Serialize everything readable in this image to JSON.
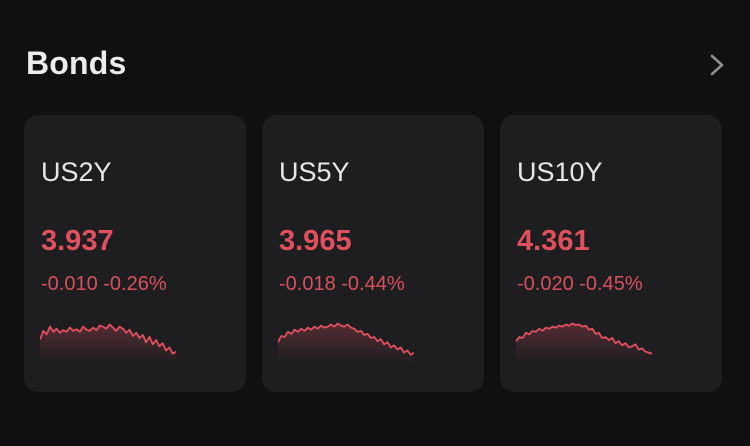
{
  "header": {
    "title": "Bonds",
    "more_icon": "chevron-right-icon"
  },
  "colors": {
    "background": "#101012",
    "card": "#1e1e21",
    "negative": "#e0505f",
    "text": "#e6e6e8"
  },
  "cards": [
    {
      "symbol": "US2Y",
      "price": "3.937",
      "change": "-0.010 -0.26%",
      "trend": [
        0.45,
        0.62,
        0.55,
        0.7,
        0.6,
        0.66,
        0.58,
        0.63,
        0.6,
        0.68,
        0.62,
        0.65,
        0.6,
        0.7,
        0.64,
        0.62,
        0.68,
        0.63,
        0.72,
        0.7,
        0.66,
        0.74,
        0.68,
        0.62,
        0.7,
        0.66,
        0.58,
        0.64,
        0.52,
        0.58,
        0.48,
        0.54,
        0.4,
        0.5,
        0.36,
        0.44,
        0.32,
        0.38,
        0.24,
        0.3,
        0.18,
        0.22
      ]
    },
    {
      "symbol": "US5Y",
      "price": "3.965",
      "change": "-0.018 -0.44%",
      "trend": [
        0.4,
        0.52,
        0.5,
        0.6,
        0.56,
        0.64,
        0.6,
        0.66,
        0.62,
        0.68,
        0.64,
        0.7,
        0.66,
        0.72,
        0.68,
        0.7,
        0.74,
        0.7,
        0.76,
        0.72,
        0.7,
        0.74,
        0.68,
        0.66,
        0.6,
        0.62,
        0.54,
        0.56,
        0.48,
        0.5,
        0.42,
        0.46,
        0.36,
        0.4,
        0.3,
        0.34,
        0.26,
        0.3,
        0.2,
        0.24,
        0.16,
        0.2
      ]
    },
    {
      "symbol": "US10Y",
      "price": "4.361",
      "change": "-0.020 -0.45%",
      "trend": [
        0.42,
        0.5,
        0.48,
        0.58,
        0.55,
        0.62,
        0.6,
        0.66,
        0.62,
        0.68,
        0.66,
        0.7,
        0.68,
        0.72,
        0.7,
        0.74,
        0.72,
        0.76,
        0.73,
        0.74,
        0.7,
        0.72,
        0.64,
        0.66,
        0.56,
        0.58,
        0.48,
        0.5,
        0.44,
        0.48,
        0.38,
        0.42,
        0.34,
        0.38,
        0.3,
        0.32,
        0.36,
        0.26,
        0.28,
        0.22,
        0.2,
        0.18
      ]
    }
  ]
}
